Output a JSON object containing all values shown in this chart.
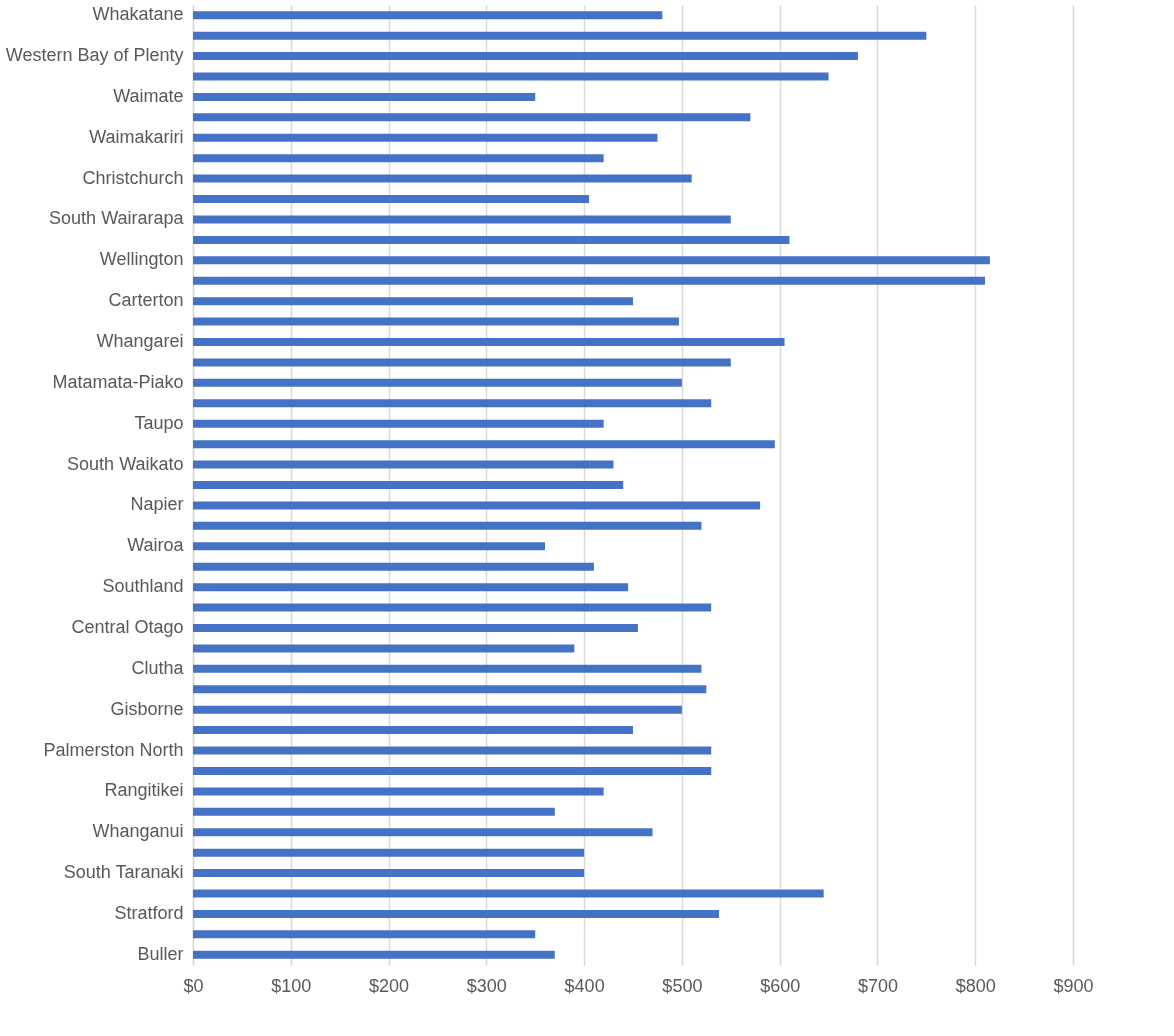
{
  "chart_data": {
    "type": "bar",
    "orientation": "horizontal",
    "color": "#4472c4",
    "grid": "x",
    "categories": [
      "Whakatane",
      null,
      "Western Bay of Plenty",
      null,
      "Waimate",
      null,
      "Waimakariri",
      null,
      "Christchurch",
      null,
      "South Wairarapa",
      null,
      "Wellington",
      null,
      "Carterton",
      null,
      "Whangarei",
      null,
      "Matamata-Piako",
      null,
      "Taupo",
      null,
      "South Waikato",
      null,
      "Napier",
      null,
      "Wairoa",
      null,
      "Southland",
      null,
      "Central Otago",
      null,
      "Clutha",
      null,
      "Gisborne",
      null,
      "Palmerston North",
      null,
      "Rangitikei",
      null,
      "Whanganui",
      null,
      "South Taranaki",
      null,
      "Stratford",
      null,
      "Buller"
    ],
    "values": [
      480,
      750,
      680,
      650,
      350,
      570,
      475,
      420,
      510,
      405,
      550,
      610,
      815,
      810,
      450,
      497,
      605,
      550,
      500,
      530,
      420,
      595,
      430,
      440,
      580,
      520,
      360,
      410,
      445,
      530,
      455,
      390,
      520,
      525,
      500,
      450,
      530,
      530,
      420,
      370,
      470,
      400,
      400,
      645,
      538,
      350,
      370
    ],
    "xlim": [
      0,
      900
    ],
    "xticks": [
      {
        "value": 0,
        "label": "$0"
      },
      {
        "value": 100,
        "label": "$100"
      },
      {
        "value": 200,
        "label": "$200"
      },
      {
        "value": 300,
        "label": "$300"
      },
      {
        "value": 400,
        "label": "$400"
      },
      {
        "value": 500,
        "label": "$500"
      },
      {
        "value": 600,
        "label": "$600"
      },
      {
        "value": 700,
        "label": "$700"
      },
      {
        "value": 800,
        "label": "$800"
      },
      {
        "value": 900,
        "label": "$900"
      }
    ]
  }
}
